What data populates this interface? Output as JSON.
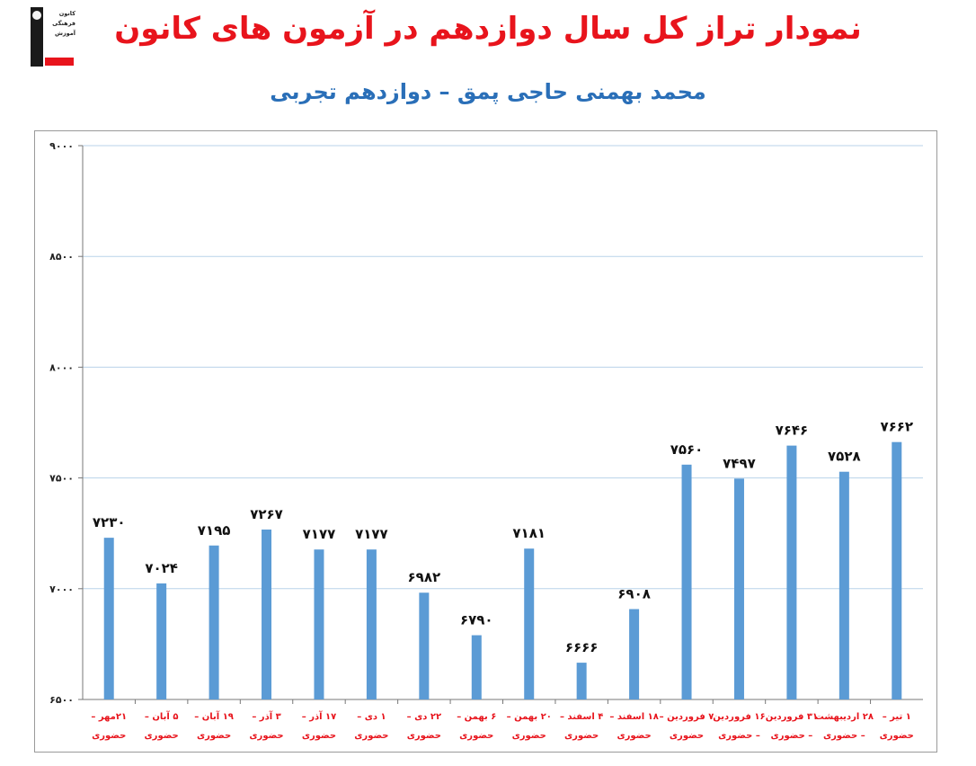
{
  "logo": {
    "lines": [
      "کانون",
      "فرهنگی",
      "آموزش"
    ],
    "badge_color": "#e8141c"
  },
  "chart_data": {
    "type": "bar",
    "title": "نمودار تراز کل سال دوازدهم در آزمون های کانون",
    "subtitle": "محمد بهمنی حاجی پمق – دوازدهم تجربی",
    "xlabel": "",
    "ylabel": "",
    "ylim": [
      6500,
      9000
    ],
    "yticks": [
      6500,
      7000,
      7500,
      8000,
      8500,
      9000
    ],
    "ytick_labels": [
      "۶۵۰۰",
      "۷۰۰۰",
      "۷۵۰۰",
      "۸۰۰۰",
      "۸۵۰۰",
      "۹۰۰۰"
    ],
    "grid": true,
    "categories": [
      [
        "۲۱مهر –",
        "حضوری"
      ],
      [
        "۵ آبان –",
        "حضوری"
      ],
      [
        "۱۹ آبان –",
        "حضوری"
      ],
      [
        "۳ آذر –",
        "حضوری"
      ],
      [
        "۱۷ آذر –",
        "حضوری"
      ],
      [
        "۱ دی –",
        "حضوری"
      ],
      [
        "۲۲ دی –",
        "حضوری"
      ],
      [
        "۶ بهمن –",
        "حضوری"
      ],
      [
        "۲۰ بهمن –",
        "حضوری"
      ],
      [
        "۴ اسفند –",
        "حضوری"
      ],
      [
        "۱۸ اسفند –",
        "حضوری"
      ],
      [
        "۷ فروردین –",
        "حضوری"
      ],
      [
        "۱۶ فروردین",
        "– حضوری"
      ],
      [
        "۳۱ فروردین",
        "– حضوری"
      ],
      [
        "۲۸ اردیبهشت",
        "– حضوری"
      ],
      [
        "۱ تیر –",
        "حضوری"
      ]
    ],
    "values": [
      7230,
      7024,
      7195,
      7267,
      7177,
      7177,
      6982,
      6790,
      7181,
      6666,
      6908,
      7560,
      7497,
      7646,
      7528,
      7662
    ],
    "value_labels": [
      "۷۲۳۰",
      "۷۰۲۴",
      "۷۱۹۵",
      "۷۲۶۷",
      "۷۱۷۷",
      "۷۱۷۷",
      "۶۹۸۲",
      "۶۷۹۰",
      "۷۱۸۱",
      "۶۶۶۶",
      "۶۹۰۸",
      "۷۵۶۰",
      "۷۴۹۷",
      "۷۶۴۶",
      "۷۵۲۸",
      "۷۶۶۲"
    ],
    "colors": {
      "bar": "#5b9bd5",
      "grid": "#b9d3ea",
      "title": "#e8141c",
      "subtitle": "#2a6fb8",
      "category": "#e8141c"
    }
  }
}
